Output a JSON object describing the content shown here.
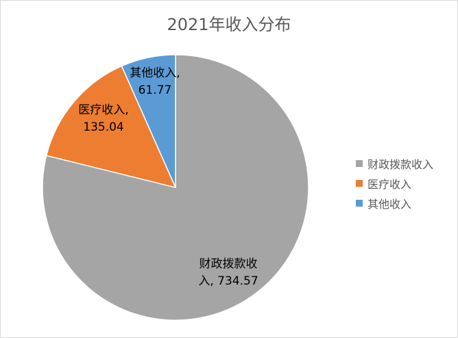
{
  "chart_data": {
    "type": "pie",
    "title": "2021年收入分布",
    "slices": [
      {
        "name": "财政拨款收入",
        "value": 734.57,
        "color": "#a5a5a5",
        "label_lines": [
          "财政拨款收",
          "入, 734.57"
        ]
      },
      {
        "name": "医疗收入",
        "value": 135.04,
        "color": "#ed7d31",
        "label_lines": [
          "医疗收入,",
          "135.04"
        ]
      },
      {
        "name": "其他收入",
        "value": 61.77,
        "color": "#5b9bd5",
        "label_lines": [
          "其他收入,",
          "61.77"
        ]
      }
    ],
    "legend": [
      "财政拨款收入",
      "医疗收入",
      "其他收入"
    ],
    "legend_position": "right"
  }
}
